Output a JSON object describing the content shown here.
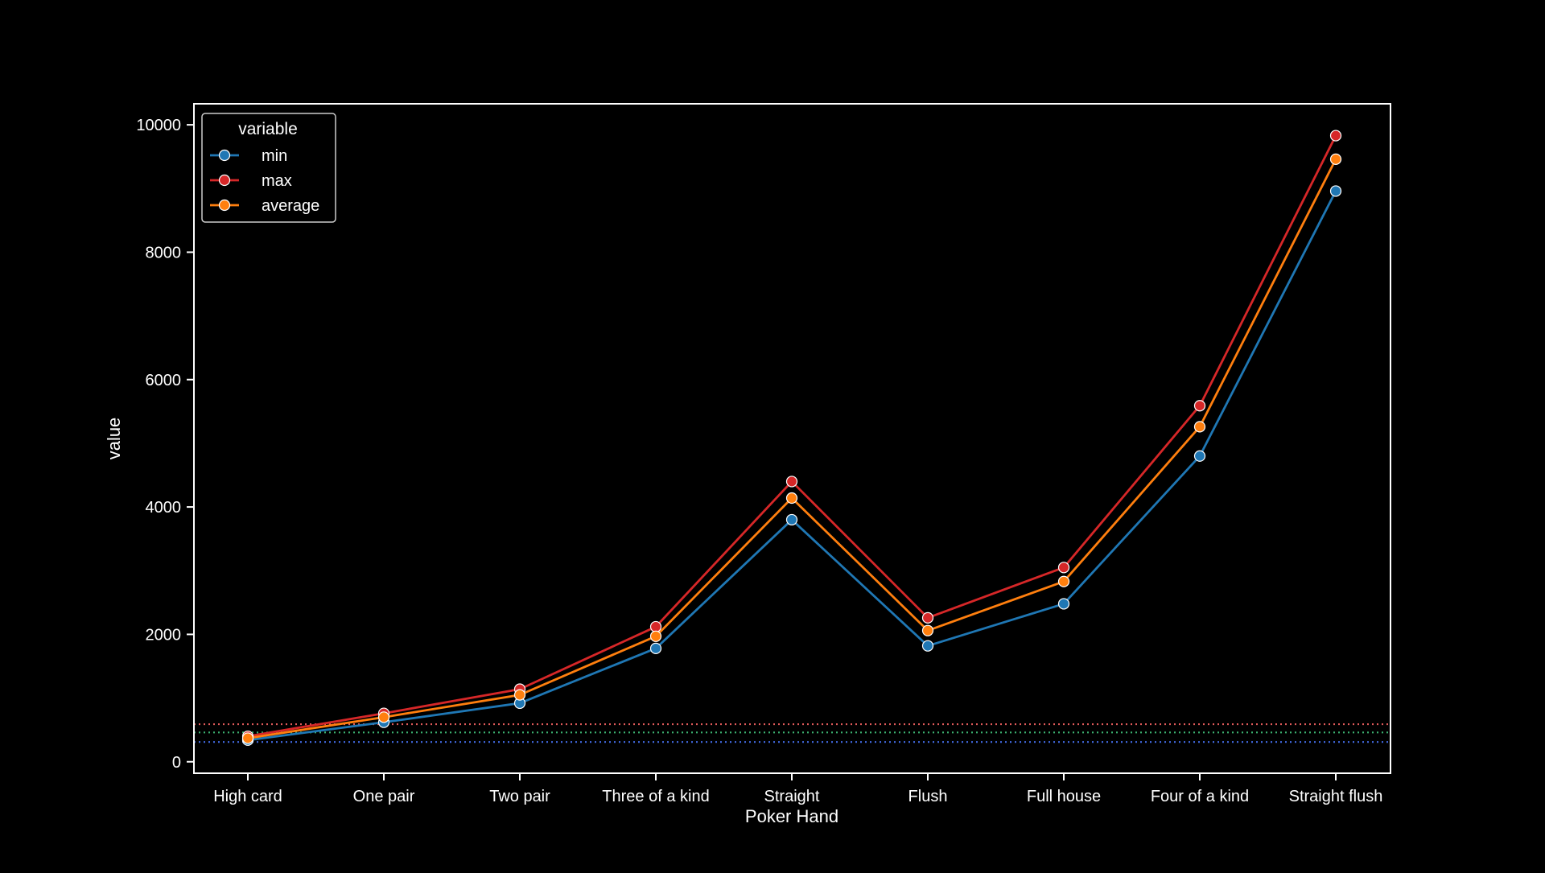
{
  "chart_data": {
    "type": "line",
    "title": "",
    "xlabel": "Poker Hand",
    "ylabel": "value",
    "categories": [
      "High card",
      "One pair",
      "Two pair",
      "Three of a kind",
      "Straight",
      "Flush",
      "Full house",
      "Four of a kind",
      "Straight flush"
    ],
    "ylim": [
      -180,
      10330
    ],
    "yticks": [
      0,
      2000,
      4000,
      6000,
      8000,
      10000
    ],
    "ytick_labels": [
      "0",
      "2000",
      "4000",
      "6000",
      "8000",
      "10000"
    ],
    "grid": false,
    "legend": {
      "title": "variable",
      "placement": "top-left"
    },
    "series": [
      {
        "name": "min",
        "color": "#1f77b4",
        "values": [
          340,
          620,
          920,
          1780,
          3800,
          1820,
          2480,
          4800,
          8960
        ]
      },
      {
        "name": "max",
        "color": "#d62728",
        "values": [
          400,
          760,
          1140,
          2120,
          4400,
          2260,
          3050,
          5590,
          9830
        ]
      },
      {
        "name": "average",
        "color": "#ff7f0e",
        "values": [
          370,
          700,
          1050,
          1970,
          4140,
          2060,
          2830,
          5260,
          9460
        ]
      }
    ],
    "reference_lines": [
      {
        "value": 590,
        "color": "#e05a5a",
        "style": "dotted"
      },
      {
        "value": 460,
        "color": "#3cb371",
        "style": "dotted"
      },
      {
        "value": 310,
        "color": "#4169e1",
        "style": "dotted"
      }
    ]
  }
}
